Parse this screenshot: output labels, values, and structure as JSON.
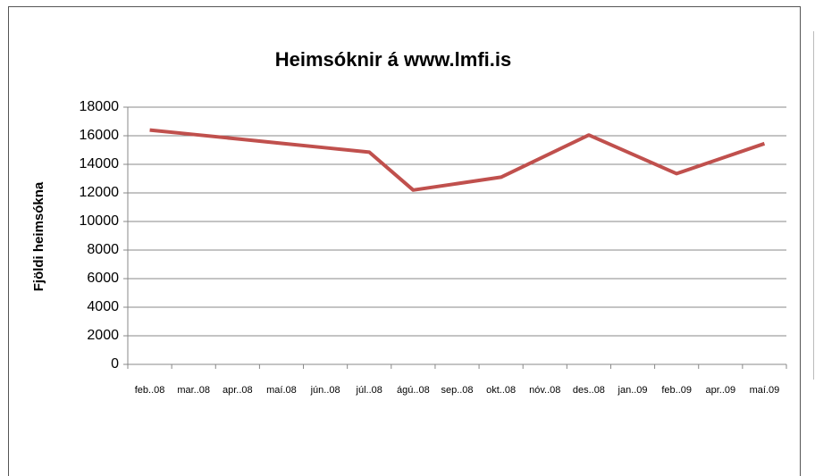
{
  "chart_data": {
    "type": "line",
    "title": "Heimsóknir á www.lmfi.is",
    "y_label": "Fjöldi heimsókna",
    "categories": [
      "feb..08",
      "mar..08",
      "apr..08",
      "maí.08",
      "jún..08",
      "júl..08",
      "ágú..08",
      "sep..08",
      "okt..08",
      "nóv..08",
      "des..08",
      "jan..09",
      "feb..09",
      "apr..09",
      "maí.09"
    ],
    "series": [
      {
        "name": "Heimsóknir",
        "color": "#c0504d",
        "values": [
          16400,
          16090,
          15780,
          15470,
          15160,
          14850,
          12200,
          12650,
          13100,
          14575,
          16050,
          14700,
          13350,
          14400,
          15450
        ]
      }
    ],
    "ylim": [
      0,
      18000
    ],
    "yticks": [
      0,
      2000,
      4000,
      6000,
      8000,
      10000,
      12000,
      14000,
      16000,
      18000
    ],
    "grid": true
  }
}
